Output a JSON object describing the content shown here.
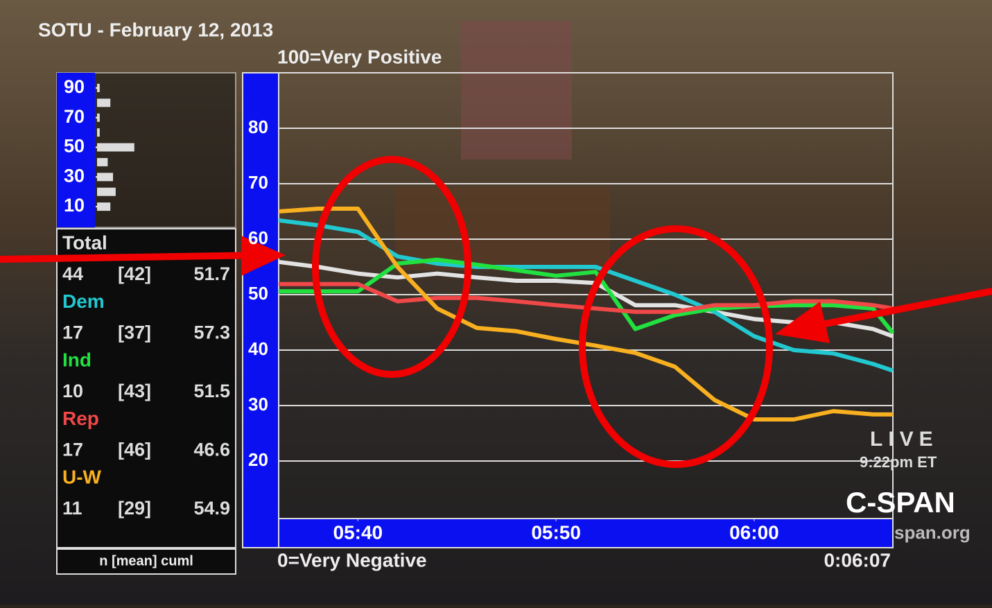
{
  "chart_data": [
    {
      "type": "line",
      "title": "SOTU - February 12, 2013",
      "top_label": "100=Very Positive",
      "bottom_label": "0=Very Negative",
      "legend_footer": "n [mean] cuml",
      "x": [
        336,
        338,
        340,
        342,
        344,
        346,
        348,
        350,
        352,
        354,
        356,
        358,
        360,
        362,
        364,
        366,
        367
      ],
      "xlim": [
        336,
        367
      ],
      "xticks": [
        {
          "value": 340,
          "label": "05:40"
        },
        {
          "value": 350,
          "label": "05:50"
        },
        {
          "value": 360,
          "label": "06:00"
        }
      ],
      "ylim": [
        10,
        90
      ],
      "yticks": [
        20,
        30,
        40,
        50,
        60,
        70,
        80
      ],
      "grid": true,
      "series": [
        {
          "name": "Total",
          "color": "#e2e2e2",
          "n": 44,
          "mean": "[42]",
          "cuml": 51.7,
          "values": [
            55.9,
            55,
            53.8,
            53.1,
            53.8,
            53.1,
            52.5,
            52.5,
            52.1,
            48.1,
            48.1,
            46.9,
            45.6,
            45,
            45,
            43.8,
            42.5
          ]
        },
        {
          "name": "Dem",
          "color": "#22c8d0",
          "n": 17,
          "mean": "[37]",
          "cuml": 57.3,
          "values": [
            63.4,
            62.5,
            61.3,
            56.9,
            55.6,
            55,
            55,
            55,
            55,
            52.5,
            50,
            46.9,
            42.5,
            40,
            39.4,
            37.5,
            36.3
          ]
        },
        {
          "name": "Ind",
          "color": "#22e040",
          "n": 10,
          "mean": "[43]",
          "cuml": 51.5,
          "values": [
            50.6,
            50.6,
            50.6,
            55.6,
            56.3,
            55.4,
            54.4,
            53.4,
            54.1,
            43.8,
            46.3,
            47.5,
            47.9,
            48.1,
            48.1,
            47.5,
            43.1
          ]
        },
        {
          "name": "Rep",
          "color": "#f04848",
          "n": 17,
          "mean": "[46]",
          "cuml": 46.6,
          "values": [
            51.9,
            51.9,
            51.9,
            48.8,
            49.4,
            49.4,
            48.8,
            48.1,
            47.5,
            46.9,
            46.9,
            48.1,
            48.1,
            48.8,
            48.8,
            48.1,
            47.5
          ]
        },
        {
          "name": "U-W",
          "color": "#f8b020",
          "n": 11,
          "mean": "[29]",
          "cuml": 54.9,
          "values": [
            65,
            65.5,
            65.5,
            55,
            47.5,
            44,
            43.4,
            42,
            40.8,
            39.5,
            37,
            31,
            27.5,
            27.5,
            29,
            28.4,
            28.4
          ]
        }
      ]
    },
    {
      "type": "hbar",
      "x": [
        90,
        80,
        70,
        60,
        50,
        40,
        30,
        20,
        10
      ],
      "values": [
        1,
        5,
        1,
        1,
        14,
        4,
        6,
        7,
        5
      ],
      "color": "#dcdcdc",
      "xlim": [
        0,
        50
      ],
      "ylim": [
        0,
        100
      ],
      "yticks": [
        10,
        30,
        50,
        70,
        90
      ]
    }
  ],
  "overlay": {
    "live": "LIVE",
    "time_et": "9:22pm ET",
    "network": "C-SPAN",
    "site": "span.org",
    "clock": "0:06:07"
  }
}
